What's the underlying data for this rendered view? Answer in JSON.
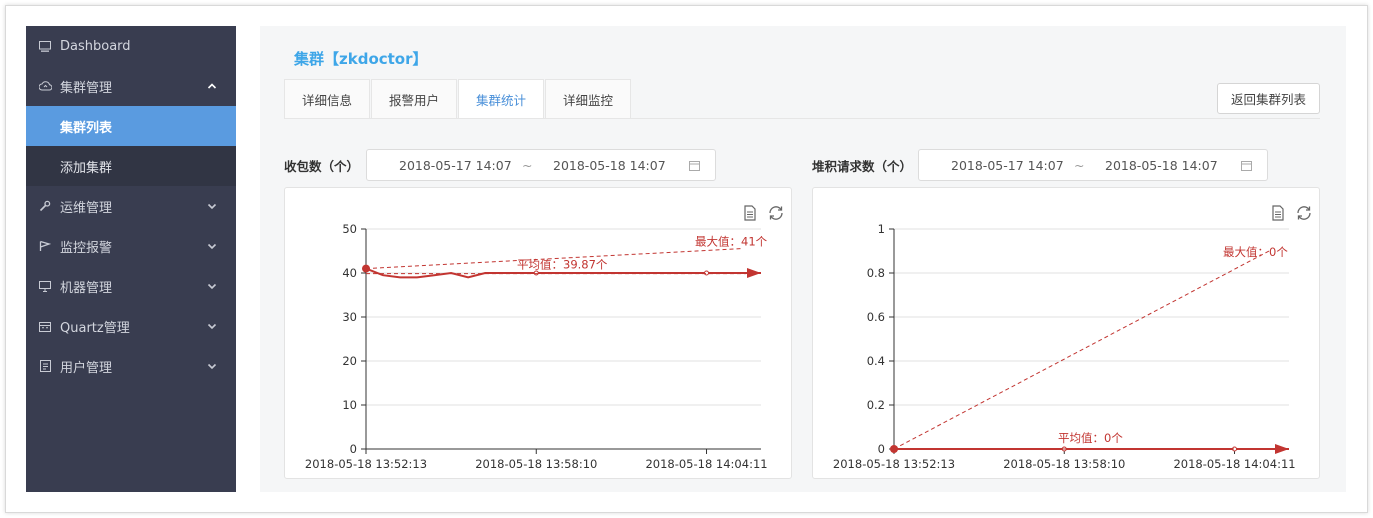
{
  "sidebar": {
    "items": [
      {
        "label": "Dashboard",
        "icon": "monitor-icon"
      },
      {
        "label": "集群管理",
        "icon": "cloud-icon",
        "expanded": true,
        "children": [
          {
            "label": "集群列表",
            "active": true
          },
          {
            "label": "添加集群",
            "active": false
          }
        ]
      },
      {
        "label": "运维管理",
        "icon": "wrench-icon"
      },
      {
        "label": "监控报警",
        "icon": "flag-icon"
      },
      {
        "label": "机器管理",
        "icon": "desktop-icon"
      },
      {
        "label": "Quartz管理",
        "icon": "calendar-icon"
      },
      {
        "label": "用户管理",
        "icon": "user-card-icon"
      }
    ]
  },
  "page": {
    "title": "集群【zkdoctor】",
    "tabs": [
      "详细信息",
      "报警用户",
      "集群统计",
      "详细监控"
    ],
    "active_tab": 2,
    "back_button": "返回集群列表"
  },
  "panels": {
    "left": {
      "label": "收包数（个）",
      "range_start": "2018-05-17 14:07",
      "range_sep": "~",
      "range_end": "2018-05-18 14:07"
    },
    "right": {
      "label": "堆积请求数（个）",
      "range_start": "2018-05-17 14:07",
      "range_sep": "~",
      "range_end": "2018-05-18 14:07"
    }
  },
  "colors": {
    "series": "#c23531",
    "sidebar": "#393d50",
    "active": "#5a9be0",
    "title": "#3ea6e8"
  },
  "chart_data": [
    {
      "type": "line",
      "title": "收包数（个）",
      "categories": [
        "2018-05-18 13:52:13",
        "2018-05-18 13:58:10",
        "2018-05-18 14:04:11"
      ],
      "x": [
        0,
        0.5,
        1.0,
        1.5,
        2.0,
        2.5,
        3.0,
        3.5,
        4.0,
        6.0,
        8.0,
        10.0,
        11.6
      ],
      "values": [
        41,
        39.5,
        39,
        39,
        39.5,
        40,
        39,
        40,
        40,
        40,
        40,
        40,
        40
      ],
      "ylim": [
        0,
        50
      ],
      "yticks": [
        0,
        10,
        20,
        30,
        40,
        50
      ],
      "xtick_positions": [
        0,
        5,
        10
      ],
      "xmax": 11.6,
      "average": 39.87,
      "max": 41,
      "average_label": "平均值：39.87个",
      "max_label": "最大值：41个"
    },
    {
      "type": "line",
      "title": "堆积请求数（个）",
      "categories": [
        "2018-05-18 13:52:13",
        "2018-05-18 13:58:10",
        "2018-05-18 14:04:11"
      ],
      "x": [
        0,
        5,
        10,
        11.6
      ],
      "values": [
        0,
        0,
        0,
        0
      ],
      "ylim": [
        0,
        1
      ],
      "yticks": [
        0,
        0.2,
        0.4,
        0.6,
        0.8,
        1
      ],
      "xtick_positions": [
        0,
        5,
        10
      ],
      "xmax": 11.6,
      "average": 0,
      "max": 0,
      "average_label": "平均值：0个",
      "max_label": "最大值：0个"
    }
  ]
}
